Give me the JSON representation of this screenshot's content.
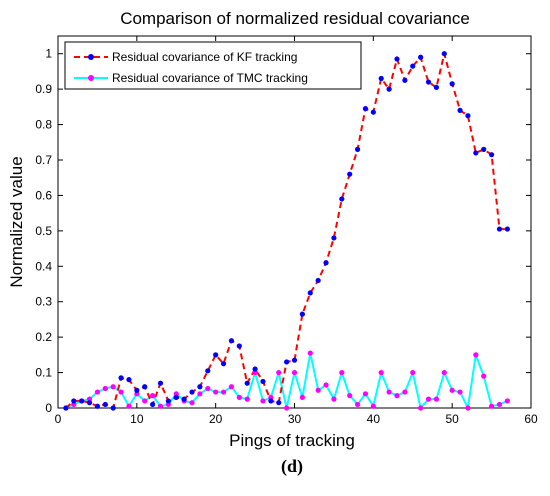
{
  "chart_data": {
    "type": "line",
    "title": "Comparison of normalized residual covariance",
    "xlabel": "Pings of tracking",
    "ylabel": "Normalized value",
    "xlim": [
      0,
      60
    ],
    "ylim": [
      0,
      1.05
    ],
    "xticks": [
      0,
      10,
      20,
      30,
      40,
      50,
      60
    ],
    "yticks": [
      0,
      0.1,
      0.2,
      0.3,
      0.4,
      0.5,
      0.6,
      0.7,
      0.8,
      0.9,
      1
    ],
    "grid": false,
    "legend_position": "top-left",
    "caption": "(d)",
    "series": [
      {
        "name": "Residual covariance of KF tracking",
        "color": "#ff0000",
        "marker_color": "#0000ff",
        "line_style": "dashed",
        "x": [
          1,
          2,
          3,
          4,
          5,
          6,
          7,
          8,
          9,
          10,
          11,
          12,
          13,
          14,
          15,
          16,
          17,
          18,
          19,
          20,
          21,
          22,
          23,
          24,
          25,
          26,
          27,
          28,
          29,
          30,
          31,
          32,
          33,
          34,
          35,
          36,
          37,
          38,
          39,
          40,
          41,
          42,
          43,
          44,
          45,
          46,
          47,
          48,
          49,
          50,
          51,
          52,
          53,
          54,
          55,
          56,
          57
        ],
        "y": [
          0.0,
          0.02,
          0.02,
          0.015,
          0.005,
          0.01,
          0.0,
          0.085,
          0.08,
          0.05,
          0.06,
          0.01,
          0.07,
          0.02,
          0.03,
          0.025,
          0.045,
          0.06,
          0.105,
          0.15,
          0.125,
          0.19,
          0.175,
          0.07,
          0.11,
          0.075,
          0.02,
          0.015,
          0.13,
          0.135,
          0.265,
          0.325,
          0.36,
          0.41,
          0.48,
          0.59,
          0.66,
          0.73,
          0.845,
          0.835,
          0.93,
          0.9,
          0.985,
          0.925,
          0.965,
          0.99,
          0.92,
          0.905,
          1.0,
          0.915,
          0.84,
          0.825,
          0.72,
          0.73,
          0.715,
          0.505,
          0.505
        ]
      },
      {
        "name": "Residual covariance of TMC tracking",
        "color": "#00ffff",
        "marker_color": "#ff00ff",
        "line_style": "solid",
        "x": [
          1,
          2,
          3,
          4,
          5,
          6,
          7,
          8,
          9,
          10,
          11,
          12,
          13,
          14,
          15,
          16,
          17,
          18,
          19,
          20,
          21,
          22,
          23,
          24,
          25,
          26,
          27,
          28,
          29,
          30,
          31,
          32,
          33,
          34,
          35,
          36,
          37,
          38,
          39,
          40,
          41,
          42,
          43,
          44,
          45,
          46,
          47,
          48,
          49,
          50,
          51,
          52,
          53,
          54,
          55,
          56,
          57
        ],
        "y": [
          0.0,
          0.01,
          0.02,
          0.025,
          0.045,
          0.055,
          0.06,
          0.045,
          0.005,
          0.04,
          0.02,
          0.035,
          0.005,
          0.01,
          0.04,
          0.02,
          0.015,
          0.04,
          0.055,
          0.045,
          0.045,
          0.06,
          0.03,
          0.025,
          0.1,
          0.02,
          0.03,
          0.1,
          0.0,
          0.1,
          0.03,
          0.155,
          0.05,
          0.065,
          0.025,
          0.1,
          0.035,
          0.01,
          0.04,
          0.005,
          0.1,
          0.045,
          0.035,
          0.045,
          0.1,
          0.0,
          0.025,
          0.025,
          0.1,
          0.05,
          0.045,
          0.0,
          0.15,
          0.09,
          0.005,
          0.01,
          0.02
        ]
      }
    ]
  }
}
